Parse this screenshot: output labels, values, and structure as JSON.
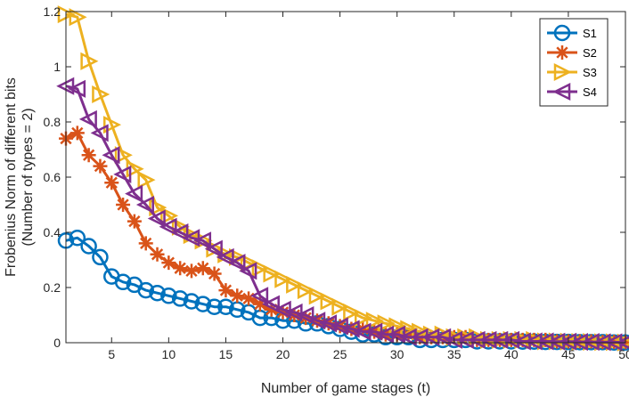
{
  "chart_data": {
    "type": "line",
    "xlabel": "Number of game stages (t)",
    "ylabel": [
      "Frobenius Norm of different bits",
      "(Number of types = 2)"
    ],
    "xlim": [
      1,
      50
    ],
    "ylim": [
      0,
      1.2
    ],
    "xticks": [
      5,
      10,
      15,
      20,
      25,
      30,
      35,
      40,
      45,
      50
    ],
    "yticks": [
      0,
      0.2,
      0.4,
      0.6,
      0.8,
      1,
      1.2
    ],
    "tick_labels_x": [
      "5",
      "10",
      "15",
      "20",
      "25",
      "30",
      "35",
      "40",
      "45",
      "50"
    ],
    "tick_labels_y": [
      "0",
      "0.2",
      "0.4",
      "0.6",
      "0.8",
      "1",
      "1.2"
    ],
    "grid": false,
    "legend_position": "top-right",
    "x": [
      1,
      2,
      3,
      4,
      5,
      6,
      7,
      8,
      9,
      10,
      11,
      12,
      13,
      14,
      15,
      16,
      17,
      18,
      19,
      20,
      21,
      22,
      23,
      24,
      25,
      26,
      27,
      28,
      29,
      30,
      31,
      32,
      33,
      34,
      35,
      36,
      37,
      38,
      39,
      40,
      41,
      42,
      43,
      44,
      45,
      46,
      47,
      48,
      49,
      50
    ],
    "series": [
      {
        "name": "S1",
        "color": "#0072BD",
        "marker": "circle",
        "values": [
          0.37,
          0.38,
          0.35,
          0.31,
          0.24,
          0.22,
          0.21,
          0.19,
          0.18,
          0.17,
          0.16,
          0.15,
          0.14,
          0.13,
          0.13,
          0.12,
          0.11,
          0.09,
          0.09,
          0.08,
          0.08,
          0.07,
          0.07,
          0.06,
          0.05,
          0.04,
          0.03,
          0.03,
          0.02,
          0.02,
          0.02,
          0.01,
          0.01,
          0.01,
          0.01,
          0.01,
          0.005,
          0.005,
          0.005,
          0.005,
          0.004,
          0.004,
          0.003,
          0.003,
          0.003,
          0.002,
          0.002,
          0.002,
          0.001,
          0.001
        ]
      },
      {
        "name": "S2",
        "color": "#D95319",
        "marker": "asterisk",
        "values": [
          0.74,
          0.76,
          0.68,
          0.64,
          0.58,
          0.5,
          0.44,
          0.36,
          0.32,
          0.29,
          0.27,
          0.26,
          0.27,
          0.25,
          0.19,
          0.17,
          0.16,
          0.14,
          0.12,
          0.11,
          0.1,
          0.09,
          0.08,
          0.07,
          0.06,
          0.05,
          0.05,
          0.04,
          0.03,
          0.03,
          0.03,
          0.02,
          0.02,
          0.02,
          0.02,
          0.02,
          0.01,
          0.01,
          0.01,
          0.01,
          0.01,
          0.01,
          0.01,
          0.005,
          0.005,
          0.005,
          0.005,
          0.003,
          0.003,
          0.002
        ]
      },
      {
        "name": "S3",
        "color": "#EDB120",
        "marker": "triangle-right",
        "values": [
          1.19,
          1.18,
          1.02,
          0.9,
          0.79,
          0.68,
          0.63,
          0.59,
          0.49,
          0.46,
          0.42,
          0.39,
          0.37,
          0.34,
          0.32,
          0.31,
          0.29,
          0.27,
          0.25,
          0.23,
          0.21,
          0.19,
          0.17,
          0.15,
          0.13,
          0.11,
          0.09,
          0.08,
          0.07,
          0.06,
          0.05,
          0.04,
          0.03,
          0.03,
          0.02,
          0.02,
          0.02,
          0.01,
          0.01,
          0.01,
          0.01,
          0.01,
          0.005,
          0.005,
          0.004,
          0.003,
          0.003,
          0.002,
          0.002,
          0.001
        ]
      },
      {
        "name": "S4",
        "color": "#7E2F8E",
        "marker": "triangle-left",
        "values": [
          0.93,
          0.92,
          0.81,
          0.76,
          0.68,
          0.61,
          0.54,
          0.5,
          0.45,
          0.42,
          0.4,
          0.38,
          0.37,
          0.34,
          0.31,
          0.29,
          0.26,
          0.17,
          0.14,
          0.12,
          0.11,
          0.1,
          0.08,
          0.07,
          0.06,
          0.05,
          0.04,
          0.04,
          0.03,
          0.03,
          0.02,
          0.02,
          0.02,
          0.02,
          0.01,
          0.01,
          0.01,
          0.01,
          0.01,
          0.01,
          0.005,
          0.005,
          0.005,
          0.004,
          0.004,
          0.003,
          0.003,
          0.002,
          0.002,
          0.001
        ]
      }
    ]
  }
}
